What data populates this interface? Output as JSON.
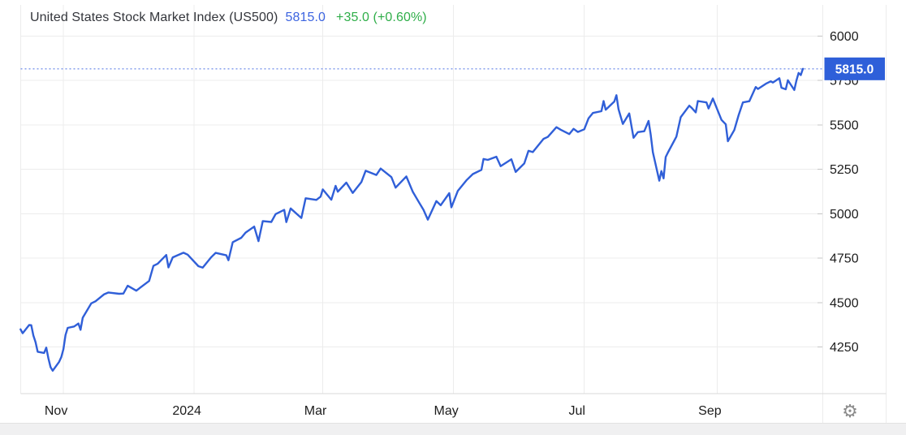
{
  "header": {
    "title": "United States Stock Market Index (US500)",
    "last_price": "5815.0",
    "change": "+35.0 (+0.60%)"
  },
  "toolbar": {
    "settings_icon": "gear-icon",
    "settings_glyph": "⚙"
  },
  "colors": {
    "line": "#305fd8",
    "dotted_line": "#4a6fe3",
    "flag_bg": "#2e5fd9",
    "flag_text": "#ffffff",
    "header_price": "#3c64e0",
    "header_change": "#2fae49",
    "grid": "#ececec",
    "axis_line": "#d9d9d9",
    "tick": "#c4c4c4",
    "axis_label": "#1c1c1c",
    "gear": "#8b8b8b"
  },
  "chart_data": {
    "type": "line",
    "title": "United States Stock Market Index (US500)",
    "legend": "none",
    "grid": true,
    "xlim": [
      "2023-10-12",
      "2024-10-11"
    ],
    "ylim": [
      3995,
      6110
    ],
    "y_ticks": [
      6000,
      5750,
      5500,
      5250,
      5000,
      4750,
      4500,
      4250
    ],
    "x_ticks": [
      {
        "date": "2023-11-01",
        "label": "Nov"
      },
      {
        "date": "2024-01-01",
        "label": "2024"
      },
      {
        "date": "2024-03-01",
        "label": "Mar"
      },
      {
        "date": "2024-05-01",
        "label": "May"
      },
      {
        "date": "2024-07-01",
        "label": "Jul"
      },
      {
        "date": "2024-09-01",
        "label": "Sep"
      }
    ],
    "last_price": 5815.0,
    "last_price_label": "5815.0",
    "series": [
      {
        "name": "US500",
        "color": "#305fd8",
        "points": [
          [
            "2023-10-12",
            4350
          ],
          [
            "2023-10-13",
            4328
          ],
          [
            "2023-10-16",
            4374
          ],
          [
            "2023-10-17",
            4373
          ],
          [
            "2023-10-18",
            4315
          ],
          [
            "2023-10-19",
            4278
          ],
          [
            "2023-10-20",
            4224
          ],
          [
            "2023-10-23",
            4217
          ],
          [
            "2023-10-24",
            4247
          ],
          [
            "2023-10-25",
            4187
          ],
          [
            "2023-10-26",
            4137
          ],
          [
            "2023-10-27",
            4117
          ],
          [
            "2023-10-30",
            4167
          ],
          [
            "2023-10-31",
            4194
          ],
          [
            "2023-11-01",
            4238
          ],
          [
            "2023-11-02",
            4318
          ],
          [
            "2023-11-03",
            4358
          ],
          [
            "2023-11-06",
            4366
          ],
          [
            "2023-11-08",
            4383
          ],
          [
            "2023-11-09",
            4347
          ],
          [
            "2023-11-10",
            4415
          ],
          [
            "2023-11-14",
            4496
          ],
          [
            "2023-11-16",
            4508
          ],
          [
            "2023-11-20",
            4547
          ],
          [
            "2023-11-22",
            4557
          ],
          [
            "2023-11-27",
            4550
          ],
          [
            "2023-11-29",
            4551
          ],
          [
            "2023-12-01",
            4595
          ],
          [
            "2023-12-05",
            4567
          ],
          [
            "2023-12-07",
            4586
          ],
          [
            "2023-12-11",
            4622
          ],
          [
            "2023-12-13",
            4707
          ],
          [
            "2023-12-15",
            4719
          ],
          [
            "2023-12-19",
            4768
          ],
          [
            "2023-12-20",
            4698
          ],
          [
            "2023-12-22",
            4755
          ],
          [
            "2023-12-27",
            4781
          ],
          [
            "2023-12-29",
            4770
          ],
          [
            "2024-01-03",
            4705
          ],
          [
            "2024-01-05",
            4697
          ],
          [
            "2024-01-09",
            4756
          ],
          [
            "2024-01-11",
            4780
          ],
          [
            "2024-01-16",
            4766
          ],
          [
            "2024-01-17",
            4739
          ],
          [
            "2024-01-19",
            4840
          ],
          [
            "2024-01-23",
            4865
          ],
          [
            "2024-01-25",
            4894
          ],
          [
            "2024-01-29",
            4928
          ],
          [
            "2024-01-31",
            4846
          ],
          [
            "2024-02-02",
            4959
          ],
          [
            "2024-02-06",
            4954
          ],
          [
            "2024-02-08",
            4998
          ],
          [
            "2024-02-12",
            5022
          ],
          [
            "2024-02-13",
            4953
          ],
          [
            "2024-02-15",
            5030
          ],
          [
            "2024-02-20",
            4976
          ],
          [
            "2024-02-22",
            5087
          ],
          [
            "2024-02-27",
            5078
          ],
          [
            "2024-02-29",
            5096
          ],
          [
            "2024-03-01",
            5137
          ],
          [
            "2024-03-05",
            5079
          ],
          [
            "2024-03-07",
            5157
          ],
          [
            "2024-03-08",
            5124
          ],
          [
            "2024-03-12",
            5175
          ],
          [
            "2024-03-15",
            5117
          ],
          [
            "2024-03-19",
            5178
          ],
          [
            "2024-03-21",
            5242
          ],
          [
            "2024-03-26",
            5218
          ],
          [
            "2024-03-28",
            5254
          ],
          [
            "2024-04-02",
            5206
          ],
          [
            "2024-04-04",
            5147
          ],
          [
            "2024-04-09",
            5210
          ],
          [
            "2024-04-12",
            5123
          ],
          [
            "2024-04-15",
            5062
          ],
          [
            "2024-04-17",
            5022
          ],
          [
            "2024-04-19",
            4967
          ],
          [
            "2024-04-23",
            5071
          ],
          [
            "2024-04-25",
            5048
          ],
          [
            "2024-04-29",
            5116
          ],
          [
            "2024-04-30",
            5036
          ],
          [
            "2024-05-03",
            5128
          ],
          [
            "2024-05-07",
            5188
          ],
          [
            "2024-05-10",
            5223
          ],
          [
            "2024-05-14",
            5247
          ],
          [
            "2024-05-15",
            5308
          ],
          [
            "2024-05-17",
            5303
          ],
          [
            "2024-05-21",
            5321
          ],
          [
            "2024-05-23",
            5268
          ],
          [
            "2024-05-28",
            5306
          ],
          [
            "2024-05-30",
            5235
          ],
          [
            "2024-06-03",
            5283
          ],
          [
            "2024-06-05",
            5354
          ],
          [
            "2024-06-07",
            5347
          ],
          [
            "2024-06-12",
            5421
          ],
          [
            "2024-06-14",
            5432
          ],
          [
            "2024-06-18",
            5487
          ],
          [
            "2024-06-20",
            5473
          ],
          [
            "2024-06-24",
            5448
          ],
          [
            "2024-06-26",
            5478
          ],
          [
            "2024-06-28",
            5460
          ],
          [
            "2024-07-01",
            5475
          ],
          [
            "2024-07-03",
            5537
          ],
          [
            "2024-07-05",
            5567
          ],
          [
            "2024-07-09",
            5577
          ],
          [
            "2024-07-10",
            5634
          ],
          [
            "2024-07-11",
            5585
          ],
          [
            "2024-07-15",
            5631
          ],
          [
            "2024-07-16",
            5667
          ],
          [
            "2024-07-17",
            5588
          ],
          [
            "2024-07-19",
            5505
          ],
          [
            "2024-07-22",
            5564
          ],
          [
            "2024-07-24",
            5427
          ],
          [
            "2024-07-26",
            5459
          ],
          [
            "2024-07-29",
            5464
          ],
          [
            "2024-07-31",
            5522
          ],
          [
            "2024-08-01",
            5446
          ],
          [
            "2024-08-02",
            5346
          ],
          [
            "2024-08-05",
            5186
          ],
          [
            "2024-08-06",
            5240
          ],
          [
            "2024-08-07",
            5199
          ],
          [
            "2024-08-08",
            5319
          ],
          [
            "2024-08-09",
            5344
          ],
          [
            "2024-08-13",
            5434
          ],
          [
            "2024-08-15",
            5543
          ],
          [
            "2024-08-19",
            5608
          ],
          [
            "2024-08-20",
            5597
          ],
          [
            "2024-08-22",
            5570
          ],
          [
            "2024-08-23",
            5634
          ],
          [
            "2024-08-27",
            5626
          ],
          [
            "2024-08-28",
            5592
          ],
          [
            "2024-08-30",
            5648
          ],
          [
            "2024-09-03",
            5528
          ],
          [
            "2024-09-05",
            5503
          ],
          [
            "2024-09-06",
            5408
          ],
          [
            "2024-09-09",
            5471
          ],
          [
            "2024-09-11",
            5554
          ],
          [
            "2024-09-13",
            5626
          ],
          [
            "2024-09-16",
            5633
          ],
          [
            "2024-09-19",
            5713
          ],
          [
            "2024-09-20",
            5702
          ],
          [
            "2024-09-24",
            5733
          ],
          [
            "2024-09-26",
            5745
          ],
          [
            "2024-09-27",
            5738
          ],
          [
            "2024-09-30",
            5762
          ],
          [
            "2024-10-01",
            5709
          ],
          [
            "2024-10-03",
            5700
          ],
          [
            "2024-10-04",
            5751
          ],
          [
            "2024-10-07",
            5696
          ],
          [
            "2024-10-08",
            5751
          ],
          [
            "2024-10-09",
            5792
          ],
          [
            "2024-10-10",
            5780
          ],
          [
            "2024-10-11",
            5815
          ]
        ]
      }
    ]
  }
}
